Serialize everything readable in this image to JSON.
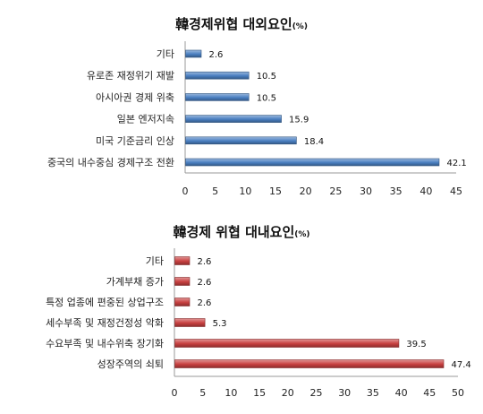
{
  "chart_data": [
    {
      "type": "bar",
      "orientation": "horizontal",
      "title": "韓경제위협 대외요인",
      "unit": "(%)",
      "categories": [
        "기타",
        "유로존 재정위기 재발",
        "아시아권 경제 위축",
        "일본 엔저지속",
        "미국 기준금리 인상",
        "중국의 내수중심 경제구조 전환"
      ],
      "values": [
        2.6,
        10.5,
        10.5,
        15.9,
        18.4,
        42.1
      ],
      "value_labels": [
        "2.6",
        "10.5",
        "10.5",
        "15.9",
        "18.4",
        "42.1"
      ],
      "xlim": [
        0,
        45
      ],
      "xticks": [
        "0",
        "5",
        "10",
        "15",
        "20",
        "25",
        "30",
        "35",
        "40",
        "45"
      ],
      "color": "#4a7fc1",
      "grid": false
    },
    {
      "type": "bar",
      "orientation": "horizontal",
      "title": "韓경제 위협 대내요인",
      "unit": "(%)",
      "categories": [
        "기타",
        "가계부채 증가",
        "특정 업종에 편중된 상업구조",
        "세수부족 및 재정건정성 악화",
        "수요부족 및 내수위축 장기화",
        "성장주역의 쇠퇴"
      ],
      "values": [
        2.6,
        2.6,
        2.6,
        5.3,
        39.5,
        47.4
      ],
      "value_labels": [
        "2.6",
        "2.6",
        "2.6",
        "5.3",
        "39.5",
        "47.4"
      ],
      "xlim": [
        0,
        50
      ],
      "xticks": [
        "0",
        "5",
        "10",
        "15",
        "20",
        "25",
        "30",
        "35",
        "40",
        "45",
        "50"
      ],
      "color": "#c84040",
      "grid": false
    }
  ]
}
